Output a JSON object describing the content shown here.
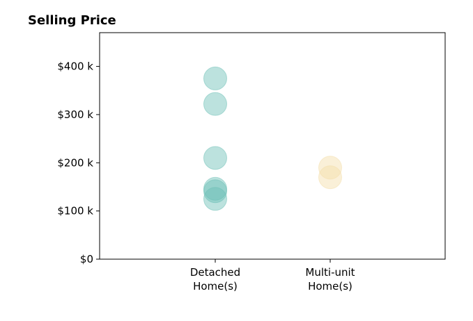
{
  "chart_data": {
    "type": "scatter",
    "title": "Selling Price",
    "xlabel": "",
    "ylabel": "",
    "categories": [
      "Detached\nHome(s)",
      "Multi-unit\nHome(s)"
    ],
    "ylim": [
      0,
      470000
    ],
    "yticks": [
      0,
      100000,
      200000,
      300000,
      400000
    ],
    "ytick_labels": [
      "$0",
      "$100 k",
      "$200 k",
      "$300 k",
      "$400 k"
    ],
    "grid": false,
    "series": [
      {
        "category": 0,
        "color": "#6bbfb5",
        "values": [
          375000,
          322000,
          210000,
          146000,
          141000,
          125000
        ]
      },
      {
        "category": 1,
        "color": "#f4dea8",
        "values": [
          190000,
          170000
        ]
      }
    ]
  }
}
